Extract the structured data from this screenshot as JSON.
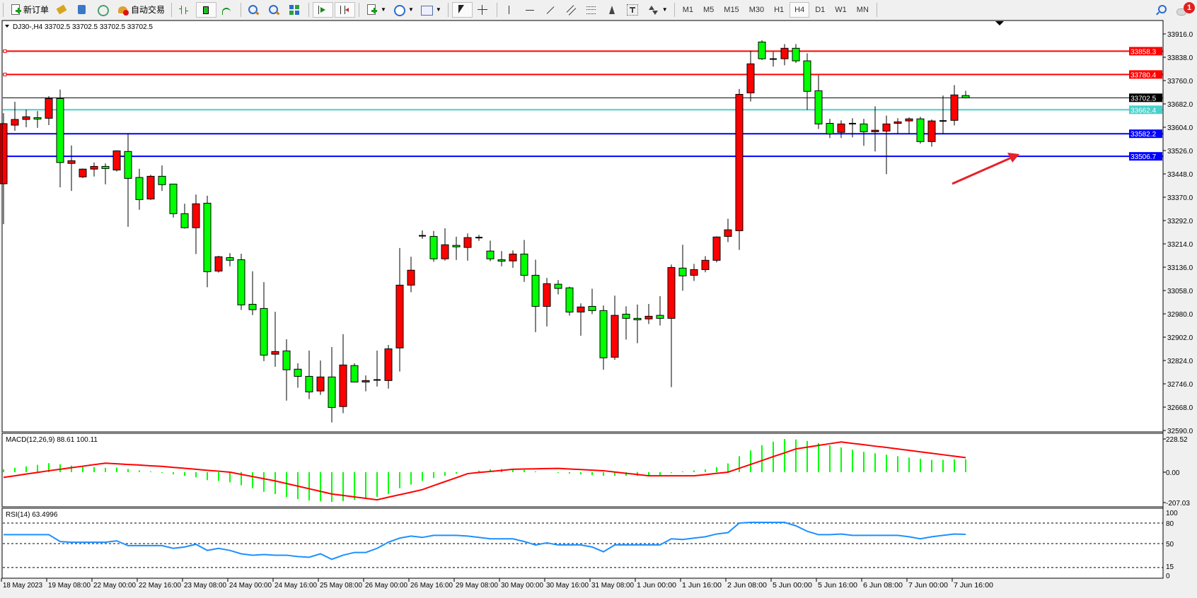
{
  "toolbar": {
    "new_order_label": "新订单",
    "autotrading_label": "自动交易",
    "timeframes": [
      "M1",
      "M5",
      "M15",
      "M30",
      "H1",
      "H4",
      "D1",
      "W1",
      "MN"
    ],
    "active_timeframe": "H4",
    "notification_count": "1"
  },
  "chart": {
    "title": "DJ30-,H4  33702.5 33702.5 33702.5 33702.5",
    "bull_color": "#ff0000",
    "bear_color": "#00ff00",
    "price_ticks": [
      "33916.0",
      "33838.0",
      "33760.0",
      "33682.0",
      "33604.0",
      "33526.0",
      "33448.0",
      "33370.0",
      "33292.0",
      "33214.0",
      "33136.0",
      "33058.0",
      "32980.0",
      "32902.0",
      "32824.0",
      "32746.0",
      "32668.0",
      "32590.0"
    ],
    "hlines": [
      {
        "price": 33858.3,
        "label": "33858.3",
        "color": "#ff0000"
      },
      {
        "price": 33780.4,
        "label": "33780.4",
        "color": "#ff0000"
      },
      {
        "price": 33702.5,
        "label": "33702.5",
        "color": "#000000"
      },
      {
        "price": 33662.4,
        "label": "33662.4",
        "color": "#48d1cc"
      },
      {
        "price": 33582.2,
        "label": "33582.2",
        "color": "#0000ff"
      },
      {
        "price": 33506.7,
        "label": "33506.7",
        "color": "#0000ff"
      }
    ],
    "time_labels": [
      "18 May 2023",
      "19 May 08:00",
      "22 May 00:00",
      "22 May 16:00",
      "23 May 08:00",
      "24 May 00:00",
      "24 May 16:00",
      "25 May 08:00",
      "26 May 00:00",
      "26 May 16:00",
      "29 May 08:00",
      "30 May 00:00",
      "30 May 16:00",
      "31 May 08:00",
      "1 Jun 00:00",
      "1 Jun 16:00",
      "2 Jun 08:00",
      "5 Jun 00:00",
      "5 Jun 16:00",
      "6 Jun 08:00",
      "7 Jun 00:00",
      "7 Jun 16:00"
    ],
    "macd": {
      "label": "MACD(12,26,9) 88.61 100.11",
      "ticks": [
        "228.52",
        "0.00",
        "-207.03"
      ]
    },
    "rsi": {
      "label": "RSI(14) 63.4996",
      "ticks": [
        "100",
        "80",
        "50",
        "15",
        "0"
      ],
      "levels": [
        80,
        50,
        15
      ]
    }
  },
  "chart_data": {
    "type": "candlestick",
    "symbol": "DJ30-",
    "timeframe": "H4",
    "ylim": [
      32590,
      33916
    ],
    "ohlc": [
      [
        33415,
        33651,
        33280,
        33616
      ],
      [
        33611,
        33689,
        33592,
        33630
      ],
      [
        33630,
        33663,
        33604,
        33639
      ],
      [
        33636,
        33658,
        33602,
        33632
      ],
      [
        33634,
        33708,
        33611,
        33700
      ],
      [
        33700,
        33730,
        33403,
        33486
      ],
      [
        33483,
        33543,
        33391,
        33492
      ],
      [
        33438,
        33466,
        33434,
        33464
      ],
      [
        33464,
        33486,
        33439,
        33473
      ],
      [
        33473,
        33483,
        33413,
        33466
      ],
      [
        33461,
        33527,
        33456,
        33525
      ],
      [
        33523,
        33584,
        33271,
        33433
      ],
      [
        33436,
        33465,
        33328,
        33362
      ],
      [
        33364,
        33445,
        33361,
        33440
      ],
      [
        33440,
        33476,
        33391,
        33412
      ],
      [
        33414,
        33414,
        33302,
        33315
      ],
      [
        33315,
        33348,
        33265,
        33268
      ],
      [
        33268,
        33379,
        33180,
        33348
      ],
      [
        33350,
        33375,
        33069,
        33121
      ],
      [
        33123,
        33174,
        33118,
        33171
      ],
      [
        33168,
        33183,
        33139,
        33159
      ],
      [
        33161,
        33181,
        32993,
        33010
      ],
      [
        33012,
        33122,
        32976,
        32994
      ],
      [
        32998,
        33086,
        32822,
        32842
      ],
      [
        32845,
        32987,
        32803,
        32854
      ],
      [
        32856,
        32895,
        32690,
        32793
      ],
      [
        32795,
        32815,
        32733,
        32771
      ],
      [
        32771,
        32857,
        32695,
        32719
      ],
      [
        32722,
        32824,
        32709,
        32769
      ],
      [
        32769,
        32869,
        32617,
        32667
      ],
      [
        32670,
        32912,
        32648,
        32809
      ],
      [
        32807,
        32815,
        32752,
        32752
      ],
      [
        32752,
        32774,
        32721,
        32757
      ],
      [
        32759,
        32857,
        32737,
        32759
      ],
      [
        32757,
        32876,
        32730,
        32863
      ],
      [
        32866,
        33200,
        32787,
        33076
      ],
      [
        33076,
        33171,
        33052,
        33126
      ],
      [
        33241,
        33259,
        33231,
        33241
      ],
      [
        33239,
        33257,
        33154,
        33164
      ],
      [
        33164,
        33266,
        33158,
        33211
      ],
      [
        33209,
        33238,
        33160,
        33204
      ],
      [
        33202,
        33249,
        33158,
        33235
      ],
      [
        33235,
        33244,
        33224,
        33235
      ],
      [
        33190,
        33225,
        33156,
        33164
      ],
      [
        33161,
        33190,
        33139,
        33157
      ],
      [
        33157,
        33192,
        33134,
        33180
      ],
      [
        33180,
        33227,
        33087,
        33109
      ],
      [
        33109,
        33161,
        32919,
        33005
      ],
      [
        33005,
        33100,
        32938,
        33081
      ],
      [
        33079,
        33093,
        33045,
        33065
      ],
      [
        33067,
        33071,
        32974,
        32986
      ],
      [
        32986,
        33015,
        32907,
        33003
      ],
      [
        33005,
        33064,
        32979,
        32991
      ],
      [
        32991,
        33008,
        32793,
        32833
      ],
      [
        32835,
        33041,
        32826,
        32975
      ],
      [
        32979,
        33005,
        32894,
        32965
      ],
      [
        32965,
        33011,
        32882,
        32960
      ],
      [
        32963,
        33013,
        32946,
        32972
      ],
      [
        32975,
        33039,
        32941,
        32965
      ],
      [
        32965,
        33145,
        32735,
        33135
      ],
      [
        33133,
        33211,
        33057,
        33107
      ],
      [
        33109,
        33147,
        33090,
        33128
      ],
      [
        33128,
        33173,
        33119,
        33159
      ],
      [
        33159,
        33239,
        33152,
        33237
      ],
      [
        33239,
        33298,
        33220,
        33261
      ],
      [
        33258,
        33732,
        33194,
        33714
      ],
      [
        33719,
        33860,
        33690,
        33816
      ],
      [
        33889,
        33895,
        33829,
        33833
      ],
      [
        33832,
        33856,
        33807,
        33832
      ],
      [
        33833,
        33882,
        33811,
        33868
      ],
      [
        33868,
        33882,
        33819,
        33826
      ],
      [
        33826,
        33851,
        33662,
        33724
      ],
      [
        33726,
        33778,
        33598,
        33615
      ],
      [
        33617,
        33632,
        33568,
        33582
      ],
      [
        33587,
        33627,
        33568,
        33615
      ],
      [
        33616,
        33634,
        33570,
        33616
      ],
      [
        33615,
        33632,
        33542,
        33589
      ],
      [
        33589,
        33674,
        33523,
        33594
      ],
      [
        33591,
        33643,
        33447,
        33615
      ],
      [
        33617,
        33634,
        33582,
        33622
      ],
      [
        33625,
        33637,
        33582,
        33632
      ],
      [
        33632,
        33639,
        33549,
        33556
      ],
      [
        33556,
        33630,
        33539,
        33625
      ],
      [
        33625,
        33710,
        33582,
        33625
      ],
      [
        33627,
        33745,
        33610,
        33712
      ],
      [
        33710,
        33726,
        33700,
        33702.5
      ]
    ],
    "macd_hist": [
      20,
      30,
      40,
      50,
      62,
      55,
      45,
      40,
      35,
      30,
      32,
      22,
      12,
      5,
      -5,
      -15,
      -25,
      -35,
      -55,
      -60,
      -70,
      -90,
      -110,
      -135,
      -150,
      -170,
      -185,
      -195,
      -200,
      -205,
      -200,
      -190,
      -180,
      -170,
      -150,
      -110,
      -85,
      -60,
      -40,
      -25,
      -10,
      0,
      10,
      20,
      22,
      20,
      15,
      5,
      0,
      -5,
      -10,
      -15,
      -20,
      -25,
      -25,
      -25,
      -25,
      -22,
      -20,
      -5,
      5,
      12,
      20,
      35,
      60,
      110,
      150,
      185,
      210,
      228,
      225,
      215,
      200,
      185,
      170,
      155,
      140,
      130,
      120,
      110,
      100,
      92,
      85,
      85,
      88,
      88.61
    ],
    "macd_signal": [
      -36,
      -25,
      -13,
      -2,
      10,
      20,
      31,
      41,
      52,
      62,
      58,
      53,
      49,
      44,
      40,
      33,
      27,
      20,
      13,
      7,
      0,
      -15,
      -30,
      -45,
      -60,
      -78,
      -96,
      -114,
      -132,
      -150,
      -160,
      -170,
      -180,
      -190,
      -172,
      -155,
      -138,
      -120,
      -92,
      -65,
      -38,
      -10,
      -2,
      5,
      12,
      20,
      22,
      23,
      25,
      26,
      22,
      18,
      14,
      10,
      1,
      -8,
      -16,
      -25,
      -25,
      -25,
      -25,
      -25,
      -17,
      -8,
      0,
      27,
      53,
      80,
      107,
      133,
      160,
      172,
      184,
      196,
      208,
      198,
      189,
      179,
      170,
      160,
      150,
      140,
      130,
      120,
      110,
      100.11
    ],
    "macd_range": [
      -207.03,
      228.52
    ],
    "rsi": [
      63,
      63,
      63,
      63,
      63,
      53,
      52,
      52,
      52,
      52,
      54,
      47,
      47,
      47,
      47,
      43,
      45,
      49,
      40,
      43,
      40,
      35,
      33,
      34,
      33,
      33,
      31,
      30,
      35,
      27,
      33,
      37,
      37,
      43,
      52,
      58,
      61,
      59,
      62,
      62,
      62,
      61,
      59,
      57,
      57,
      57,
      53,
      48,
      51,
      48,
      48,
      48,
      45,
      38,
      48,
      48,
      48,
      48,
      48,
      57,
      56,
      58,
      60,
      64,
      66,
      80,
      81,
      81,
      81,
      81,
      76,
      68,
      63,
      63,
      64,
      62,
      62,
      62,
      62,
      62,
      60,
      57,
      60,
      62,
      64,
      63.4996
    ],
    "colors": {
      "macd_hist": "#00ff00",
      "macd_signal": "#ff0000",
      "rsi": "#1e90ff",
      "arrow": "#e8202a"
    }
  }
}
